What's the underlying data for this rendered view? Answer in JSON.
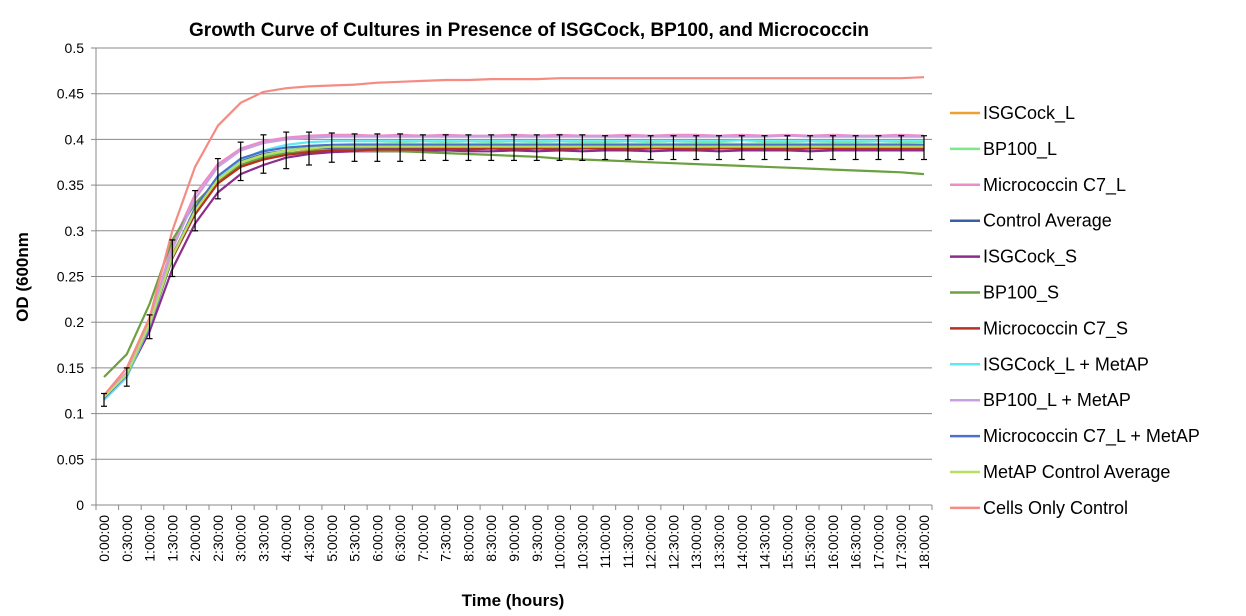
{
  "chart_data": {
    "type": "line",
    "title": "Growth Curve of Cultures in Presence of ISGCock, BP100, and Micrococcin",
    "xlabel": "Time (hours)",
    "ylabel": "OD (600nm",
    "ylim": [
      0,
      0.5
    ],
    "yticks": [
      "0",
      "0.05",
      "0.1",
      "0.15",
      "0.2",
      "0.25",
      "0.3",
      "0.35",
      "0.4",
      "0.45",
      "0.5"
    ],
    "grid": "horizontal",
    "legend_position": "right",
    "categories": [
      "0:00:00",
      "0:30:00",
      "1:00:00",
      "1:30:00",
      "2:00:00",
      "2:30:00",
      "3:00:00",
      "3:30:00",
      "4:00:00",
      "4:30:00",
      "5:00:00",
      "5:30:00",
      "6:00:00",
      "6:30:00",
      "7:00:00",
      "7:30:00",
      "8:00:00",
      "8:30:00",
      "9:00:00",
      "9:30:00",
      "10:00:00",
      "10:30:00",
      "11:00:00",
      "11:30:00",
      "12:00:00",
      "12:30:00",
      "13:00:00",
      "13:30:00",
      "14:00:00",
      "14:30:00",
      "15:00:00",
      "15:30:00",
      "16:00:00",
      "16:30:00",
      "17:00:00",
      "17:30:00",
      "18:00:00"
    ],
    "series": [
      {
        "name": "ISGCock_L",
        "color": "#F0A030",
        "values": [
          0.12,
          0.145,
          0.2,
          0.275,
          0.32,
          0.352,
          0.37,
          0.378,
          0.384,
          0.388,
          0.39,
          0.39,
          0.391,
          0.39,
          0.392,
          0.39,
          0.391,
          0.39,
          0.392,
          0.39,
          0.392,
          0.39,
          0.391,
          0.392,
          0.39,
          0.392,
          0.39,
          0.392,
          0.391,
          0.392,
          0.39,
          0.392,
          0.391,
          0.392,
          0.391,
          0.392,
          0.392
        ]
      },
      {
        "name": "BP100_L",
        "color": "#7CE88C",
        "values": [
          0.118,
          0.143,
          0.198,
          0.27,
          0.318,
          0.352,
          0.372,
          0.382,
          0.388,
          0.392,
          0.394,
          0.395,
          0.395,
          0.396,
          0.395,
          0.396,
          0.395,
          0.396,
          0.395,
          0.396,
          0.395,
          0.396,
          0.396,
          0.395,
          0.396,
          0.395,
          0.396,
          0.396,
          0.395,
          0.396,
          0.396,
          0.395,
          0.396,
          0.396,
          0.395,
          0.396,
          0.397
        ]
      },
      {
        "name": "Micrococcin C7_L",
        "color": "#EE8CC8",
        "values": [
          0.118,
          0.145,
          0.2,
          0.285,
          0.34,
          0.373,
          0.39,
          0.398,
          0.402,
          0.404,
          0.405,
          0.405,
          0.404,
          0.405,
          0.404,
          0.405,
          0.404,
          0.404,
          0.405,
          0.404,
          0.405,
          0.404,
          0.404,
          0.405,
          0.404,
          0.405,
          0.405,
          0.404,
          0.405,
          0.404,
          0.405,
          0.404,
          0.405,
          0.404,
          0.404,
          0.405,
          0.404
        ]
      },
      {
        "name": "Control Average",
        "color": "#3A5EA8",
        "values": [
          0.115,
          0.14,
          0.195,
          0.27,
          0.322,
          0.357,
          0.376,
          0.384,
          0.388,
          0.39,
          0.391,
          0.391,
          0.391,
          0.391,
          0.391,
          0.391,
          0.391,
          0.391,
          0.391,
          0.391,
          0.391,
          0.391,
          0.391,
          0.391,
          0.391,
          0.391,
          0.391,
          0.391,
          0.391,
          0.391,
          0.391,
          0.391,
          0.391,
          0.391,
          0.391,
          0.391,
          0.391
        ]
      },
      {
        "name": "ISGCock_S",
        "color": "#8C2C8C",
        "values": [
          0.12,
          0.142,
          0.19,
          0.258,
          0.308,
          0.342,
          0.362,
          0.372,
          0.38,
          0.384,
          0.386,
          0.387,
          0.387,
          0.387,
          0.387,
          0.388,
          0.387,
          0.387,
          0.388,
          0.387,
          0.388,
          0.387,
          0.388,
          0.388,
          0.387,
          0.388,
          0.388,
          0.387,
          0.388,
          0.388,
          0.388,
          0.387,
          0.388,
          0.388,
          0.388,
          0.388,
          0.388
        ]
      },
      {
        "name": "BP100_S",
        "color": "#6CA040",
        "values": [
          0.14,
          0.165,
          0.22,
          0.29,
          0.33,
          0.355,
          0.372,
          0.38,
          0.385,
          0.387,
          0.388,
          0.388,
          0.387,
          0.387,
          0.386,
          0.385,
          0.384,
          0.383,
          0.382,
          0.381,
          0.379,
          0.378,
          0.377,
          0.376,
          0.375,
          0.374,
          0.373,
          0.372,
          0.371,
          0.37,
          0.369,
          0.368,
          0.367,
          0.366,
          0.365,
          0.364,
          0.362
        ]
      },
      {
        "name": "Micrococcin C7_S",
        "color": "#B83020",
        "values": [
          0.118,
          0.143,
          0.197,
          0.27,
          0.318,
          0.352,
          0.37,
          0.378,
          0.383,
          0.386,
          0.388,
          0.388,
          0.389,
          0.389,
          0.389,
          0.39,
          0.389,
          0.39,
          0.389,
          0.39,
          0.389,
          0.39,
          0.39,
          0.389,
          0.39,
          0.39,
          0.389,
          0.39,
          0.39,
          0.39,
          0.389,
          0.39,
          0.39,
          0.39,
          0.39,
          0.39,
          0.39
        ]
      },
      {
        "name": "ISGCock_L + MetAP",
        "color": "#5EE8F4",
        "values": [
          0.115,
          0.14,
          0.196,
          0.272,
          0.322,
          0.358,
          0.378,
          0.388,
          0.394,
          0.397,
          0.398,
          0.398,
          0.398,
          0.398,
          0.398,
          0.398,
          0.398,
          0.398,
          0.398,
          0.398,
          0.398,
          0.398,
          0.398,
          0.398,
          0.398,
          0.398,
          0.398,
          0.398,
          0.399,
          0.398,
          0.398,
          0.398,
          0.398,
          0.398,
          0.398,
          0.398,
          0.398
        ]
      },
      {
        "name": "BP100_L  + MetAP",
        "color": "#C8A0E0",
        "values": [
          0.118,
          0.144,
          0.2,
          0.28,
          0.335,
          0.37,
          0.388,
          0.396,
          0.4,
          0.402,
          0.403,
          0.403,
          0.403,
          0.403,
          0.403,
          0.403,
          0.403,
          0.403,
          0.403,
          0.403,
          0.403,
          0.403,
          0.403,
          0.403,
          0.403,
          0.403,
          0.403,
          0.403,
          0.403,
          0.403,
          0.404,
          0.403,
          0.403,
          0.403,
          0.403,
          0.403,
          0.403
        ]
      },
      {
        "name": "Micrococcin C7_L + MetAP",
        "color": "#4C70CC",
        "values": [
          0.117,
          0.142,
          0.197,
          0.272,
          0.325,
          0.36,
          0.379,
          0.387,
          0.391,
          0.393,
          0.394,
          0.394,
          0.394,
          0.394,
          0.394,
          0.394,
          0.394,
          0.394,
          0.394,
          0.394,
          0.394,
          0.394,
          0.394,
          0.394,
          0.394,
          0.394,
          0.394,
          0.394,
          0.394,
          0.394,
          0.394,
          0.394,
          0.394,
          0.394,
          0.394,
          0.394,
          0.394
        ]
      },
      {
        "name": "MetAP Control Average",
        "color": "#B8E060",
        "values": [
          0.118,
          0.143,
          0.198,
          0.272,
          0.322,
          0.356,
          0.375,
          0.383,
          0.388,
          0.39,
          0.392,
          0.392,
          0.392,
          0.392,
          0.392,
          0.392,
          0.392,
          0.392,
          0.392,
          0.392,
          0.392,
          0.392,
          0.392,
          0.392,
          0.392,
          0.392,
          0.392,
          0.392,
          0.392,
          0.392,
          0.392,
          0.392,
          0.392,
          0.392,
          0.392,
          0.392,
          0.392
        ]
      },
      {
        "name": "Cells Only Control",
        "color": "#F48C84",
        "values": [
          0.12,
          0.15,
          0.205,
          0.3,
          0.37,
          0.415,
          0.44,
          0.452,
          0.456,
          0.458,
          0.459,
          0.46,
          0.462,
          0.463,
          0.464,
          0.465,
          0.465,
          0.466,
          0.466,
          0.466,
          0.467,
          0.467,
          0.467,
          0.467,
          0.467,
          0.467,
          0.467,
          0.467,
          0.467,
          0.467,
          0.467,
          0.467,
          0.467,
          0.467,
          0.467,
          0.467,
          0.468
        ]
      }
    ],
    "error_bars": {
      "color": "#000000",
      "lower": [
        0.108,
        0.13,
        0.182,
        0.25,
        0.3,
        0.335,
        0.355,
        0.363,
        0.368,
        0.372,
        0.375,
        0.376,
        0.376,
        0.376,
        0.377,
        0.377,
        0.377,
        0.377,
        0.377,
        0.377,
        0.377,
        0.377,
        0.378,
        0.378,
        0.378,
        0.378,
        0.378,
        0.378,
        0.378,
        0.378,
        0.378,
        0.378,
        0.378,
        0.378,
        0.378,
        0.378,
        0.378
      ],
      "upper": [
        0.122,
        0.15,
        0.208,
        0.29,
        0.344,
        0.379,
        0.397,
        0.405,
        0.408,
        0.408,
        0.407,
        0.406,
        0.406,
        0.406,
        0.405,
        0.405,
        0.405,
        0.405,
        0.405,
        0.405,
        0.405,
        0.405,
        0.404,
        0.404,
        0.404,
        0.404,
        0.404,
        0.404,
        0.404,
        0.404,
        0.404,
        0.404,
        0.404,
        0.404,
        0.404,
        0.404,
        0.404
      ]
    }
  }
}
